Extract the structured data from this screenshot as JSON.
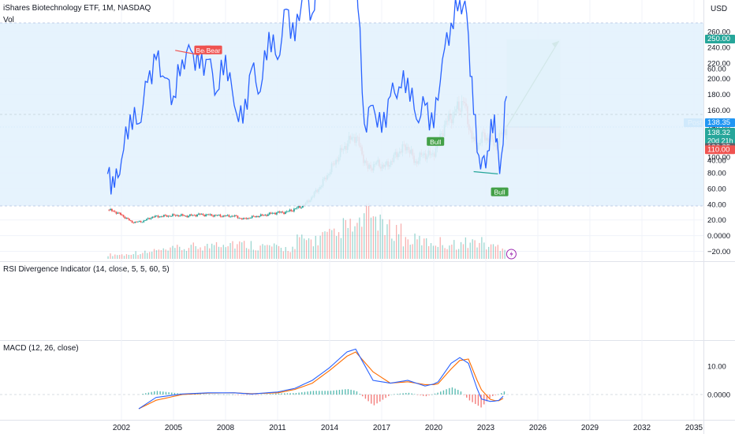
{
  "header": {
    "title": "iShares Biotechnology ETF, 1M, NASDAQ",
    "vol_label": "Vol",
    "currency": "USD"
  },
  "panes": {
    "rsi_title": "RSI Divergence Indicator (14, close, 5, 5, 60, 5)",
    "macd_title": "MACD (12, 26, close)"
  },
  "price_badges": {
    "target": "250.00",
    "post_label": "Post",
    "post": "138.35",
    "last": "138.32",
    "countdown": "20d 21h",
    "close_prev": "136.85",
    "stop": "110.00"
  },
  "colors": {
    "up": "#26a69a",
    "down": "#ef5350",
    "rsi_line": "#2962ff",
    "macd_line": "#2962ff",
    "signal_line": "#ff6d00",
    "target_zone": "#d1ede4",
    "stop_zone": "#fbd9db",
    "arrow": "#3a8f3a",
    "post_badge": "#2196f3"
  },
  "chart_data": [
    {
      "type": "candlestick",
      "xlabel": "",
      "ylabel": "",
      "x_ticks": [
        "2002",
        "2005",
        "2008",
        "2011",
        "2014",
        "2017",
        "2020",
        "2023",
        "2026",
        "2029",
        "2032",
        "2035"
      ],
      "y_ticks": [
        "260.00",
        "240.00",
        "220.00",
        "200.00",
        "180.00",
        "160.00",
        "140.00",
        "120.00",
        "100.00",
        "80.00",
        "60.00",
        "40.00",
        "20.00",
        "0.0000",
        "−20.00"
      ],
      "ylim": [
        -25,
        265
      ],
      "price_path": [
        [
          2001.2,
          33
        ],
        [
          2001.7,
          30
        ],
        [
          2002.3,
          22
        ],
        [
          2002.6,
          17
        ],
        [
          2003.2,
          18
        ],
        [
          2003.8,
          24
        ],
        [
          2004.5,
          25
        ],
        [
          2005.2,
          26
        ],
        [
          2005.8,
          25
        ],
        [
          2006.5,
          27
        ],
        [
          2007.2,
          26
        ],
        [
          2007.9,
          25
        ],
        [
          2008.5,
          25
        ],
        [
          2009.0,
          21
        ],
        [
          2009.6,
          24
        ],
        [
          2010.2,
          26
        ],
        [
          2010.8,
          29
        ],
        [
          2011.5,
          30
        ],
        [
          2012.0,
          34
        ],
        [
          2012.6,
          40
        ],
        [
          2013.0,
          50
        ],
        [
          2013.5,
          64
        ],
        [
          2014.0,
          82
        ],
        [
          2014.5,
          101
        ],
        [
          2015.0,
          118
        ],
        [
          2015.5,
          128
        ],
        [
          2015.8,
          108
        ],
        [
          2016.2,
          85
        ],
        [
          2016.7,
          92
        ],
        [
          2017.2,
          88
        ],
        [
          2017.6,
          96
        ],
        [
          2018.0,
          108
        ],
        [
          2018.5,
          114
        ],
        [
          2018.9,
          93
        ],
        [
          2019.4,
          104
        ],
        [
          2019.9,
          102
        ],
        [
          2020.2,
          115
        ],
        [
          2020.6,
          140
        ],
        [
          2021.0,
          152
        ],
        [
          2021.5,
          165
        ],
        [
          2021.7,
          173
        ],
        [
          2022.0,
          142
        ],
        [
          2022.4,
          112
        ],
        [
          2022.8,
          126
        ],
        [
          2023.2,
          124
        ],
        [
          2023.6,
          113
        ],
        [
          2023.9,
          130
        ],
        [
          2024.2,
          138.32
        ]
      ],
      "position_tool": {
        "entry": 138.32,
        "target": 250.0,
        "stop": 110.0,
        "x_start": 2024.2,
        "x_end": 2027.3
      }
    },
    {
      "type": "bar",
      "name": "Vol",
      "values_relative": [
        0.1,
        0.15,
        0.2,
        0.25,
        0.3,
        0.4,
        0.35,
        0.3,
        0.25,
        0.45,
        0.55,
        0.75,
        1.0,
        0.7,
        0.45,
        0.4,
        0.35,
        0.4,
        0.3
      ]
    },
    {
      "type": "line",
      "title": "RSI Divergence Indicator (14, close, 5, 5, 60, 5)",
      "y_ticks": [
        "80.00",
        "60.00",
        "40.00"
      ],
      "ylim": [
        28,
        92
      ],
      "band": [
        30,
        70
      ],
      "x": [
        2001.2,
        2001.6,
        2002.0,
        2002.5,
        2003.0,
        2003.5,
        2004.0,
        2004.5,
        2005.0,
        2005.5,
        2006.0,
        2006.5,
        2007.0,
        2007.5,
        2008.0,
        2008.5,
        2009.0,
        2009.5,
        2010.0,
        2010.5,
        2011.0,
        2011.5,
        2012.0,
        2012.5,
        2013.0,
        2013.5,
        2014.0,
        2014.5,
        2015.0,
        2015.5,
        2016.0,
        2016.5,
        2017.0,
        2017.5,
        2018.0,
        2018.5,
        2019.0,
        2019.5,
        2020.0,
        2020.5,
        2021.0,
        2021.5,
        2021.9,
        2022.3,
        2022.7,
        2023.1,
        2023.5,
        2023.8,
        2024.2
      ],
      "values": [
        37,
        34,
        40,
        50,
        48,
        57,
        62,
        58,
        54,
        62,
        64,
        60,
        62,
        55,
        63,
        52,
        48,
        60,
        55,
        68,
        62,
        73,
        66,
        78,
        72,
        85,
        82,
        87,
        88,
        84,
        48,
        52,
        46,
        54,
        56,
        58,
        49,
        52,
        47,
        62,
        70,
        75,
        72,
        50,
        38,
        42,
        50,
        37,
        54
      ],
      "labels": [
        {
          "text": "Bear",
          "x": 2006.7,
          "y": 64
        },
        {
          "text": "Bear",
          "x": 2007.3,
          "y": 64
        },
        {
          "text": "Bear",
          "x": 2015.3,
          "y": 89
        },
        {
          "text": "Bull",
          "x": 2020.1,
          "y": 44
        },
        {
          "text": "Bear",
          "x": 2021.6,
          "y": 76
        },
        {
          "text": "Bull",
          "x": 2023.8,
          "y": 33
        }
      ]
    },
    {
      "type": "line",
      "title": "MACD (12, 26, close)",
      "y_ticks": [
        "10.00",
        "0.0000"
      ],
      "ylim": [
        -7,
        17
      ],
      "series": [
        {
          "name": "MACD",
          "x": [
            2003.0,
            2004.0,
            2005.5,
            2007.0,
            2008.5,
            2009.5,
            2011.0,
            2012.0,
            2013.0,
            2014.0,
            2015.0,
            2015.5,
            2016.5,
            2017.5,
            2018.5,
            2019.5,
            2020.2,
            2021.0,
            2021.5,
            2022.0,
            2022.7,
            2023.3,
            2023.8,
            2024.2
          ],
          "values": [
            -5,
            -1,
            0.2,
            0.6,
            0.6,
            0.2,
            0.9,
            2.2,
            5.0,
            9.5,
            15.0,
            16.0,
            5.0,
            4.0,
            5.0,
            3.0,
            4.0,
            11.0,
            13.0,
            11.0,
            -1.5,
            -2.5,
            -2.0,
            0.8
          ]
        },
        {
          "name": "Signal",
          "x": [
            2003.0,
            2004.0,
            2005.5,
            2007.0,
            2008.5,
            2009.5,
            2011.0,
            2012.0,
            2013.0,
            2014.0,
            2015.0,
            2015.5,
            2016.5,
            2017.5,
            2018.5,
            2019.5,
            2020.2,
            2021.0,
            2021.5,
            2022.0,
            2022.7,
            2023.3,
            2023.8,
            2024.2
          ],
          "values": [
            -5,
            -2,
            0,
            0.5,
            0.6,
            0.3,
            0.6,
            1.8,
            4.0,
            8.5,
            13.5,
            15.0,
            8.0,
            4.0,
            4.5,
            3.5,
            3.5,
            9.0,
            12.0,
            12.5,
            2.0,
            -2.0,
            -2.2,
            -0.5
          ]
        }
      ]
    }
  ]
}
